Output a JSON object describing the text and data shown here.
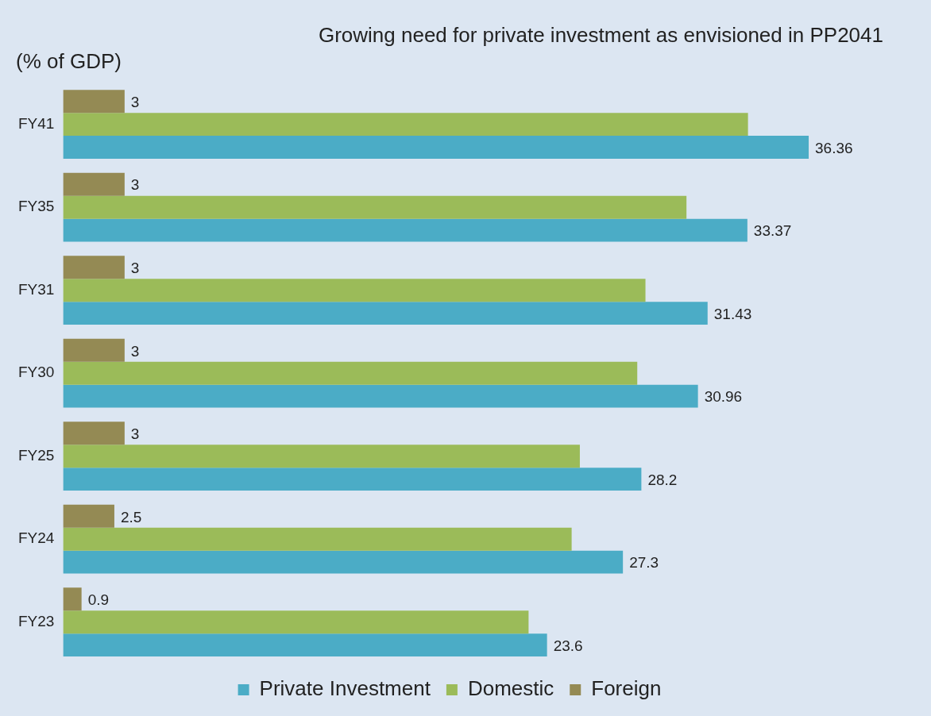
{
  "chart_data": {
    "type": "bar",
    "orientation": "horizontal",
    "title": "Growing need for private investment as envisioned in PP2041",
    "subtitle": "(% of GDP)",
    "categories": [
      "FY41",
      "FY35",
      "FY31",
      "FY30",
      "FY25",
      "FY24",
      "FY23"
    ],
    "series": [
      {
        "name": "Private Investment",
        "color": "#4bacc6",
        "values": [
          36.36,
          33.37,
          31.43,
          30.96,
          28.2,
          27.3,
          23.6
        ],
        "value_labels": [
          "36.36",
          "33.37",
          "31.43",
          "30.96",
          "28.2",
          "27.3",
          "23.6"
        ]
      },
      {
        "name": "Domestic",
        "color": "#9bbb59",
        "values": [
          33.4,
          30.4,
          28.4,
          28.0,
          25.2,
          24.8,
          22.7
        ]
      },
      {
        "name": "Foreign",
        "color": "#948a54",
        "values": [
          3,
          3,
          3,
          3,
          3,
          2.5,
          0.9
        ],
        "value_labels": [
          "3",
          "3",
          "3",
          "3",
          "3",
          "2.5",
          "0.9"
        ]
      }
    ],
    "legend": "bottom"
  }
}
